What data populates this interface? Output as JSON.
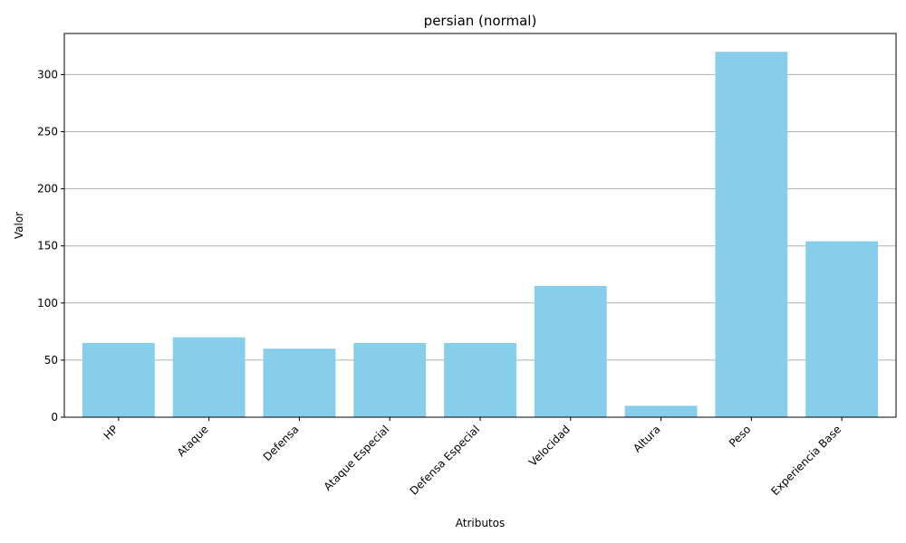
{
  "chart_data": {
    "type": "bar",
    "title": "persian (normal)",
    "xlabel": "Atributos",
    "ylabel": "Valor",
    "categories": [
      "HP",
      "Ataque",
      "Defensa",
      "Ataque Especial",
      "Defensa Especial",
      "Velocidad",
      "Altura",
      "Peso",
      "Experiencia Base"
    ],
    "values": [
      65,
      70,
      60,
      65,
      65,
      115,
      10,
      320,
      154
    ],
    "ylim": [
      0,
      336
    ],
    "yticks": [
      0,
      50,
      100,
      150,
      200,
      250,
      300
    ],
    "grid": "y",
    "bar_color": "#87ceeb"
  }
}
